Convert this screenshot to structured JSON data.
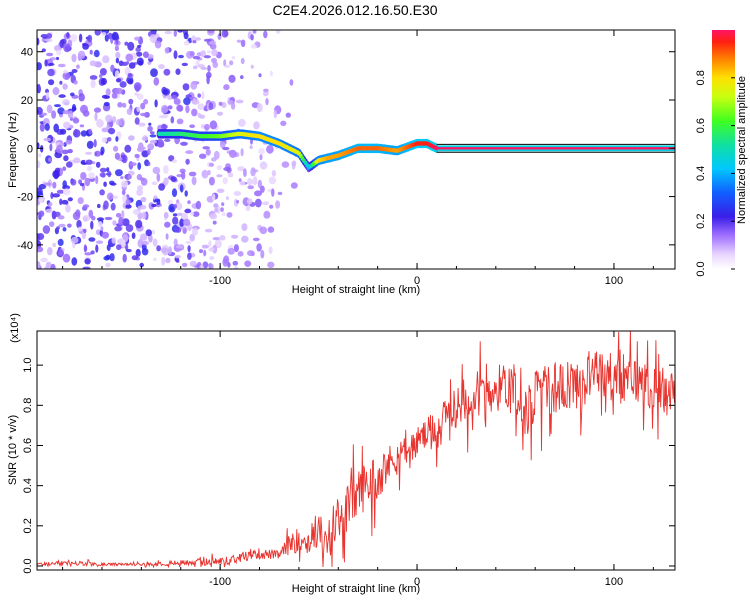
{
  "title": "C2E4.2026.012.16.50.E30",
  "colors": {
    "snr_line": "#e8332e",
    "scatter": "#6a1fe0",
    "axis": "#000000"
  },
  "chart_data": [
    {
      "type": "heatmap",
      "name": "spectrogram",
      "xlabel": "Height of straight line (km)",
      "ylabel": "Frequency (Hz)",
      "xlim": [
        -193,
        131
      ],
      "ylim": [
        -50,
        49
      ],
      "x_ticks": [
        -100,
        0,
        100
      ],
      "x_tick_labels": [
        "-100",
        "0",
        "100"
      ],
      "y_ticks": [
        -40,
        -20,
        0,
        20,
        40
      ],
      "y_tick_labels": [
        "-40",
        "-20",
        "0",
        "20",
        "40"
      ],
      "colorbar": {
        "label": "Normalized spectral amplitude",
        "range": [
          0,
          1
        ],
        "ticks": [
          0.0,
          0.2,
          0.4,
          0.6,
          0.8
        ],
        "tick_labels": [
          "0.0",
          "0.2",
          "0.4",
          "0.6",
          "0.8"
        ]
      },
      "ridge": {
        "x": [
          -130,
          -120,
          -110,
          -100,
          -90,
          -80,
          -70,
          -60,
          -55,
          -50,
          -45,
          -40,
          -30,
          -20,
          -10,
          0,
          5,
          10,
          130
        ],
        "y": [
          6,
          6,
          5,
          5,
          6,
          5,
          2,
          -2,
          -8,
          -5,
          -4,
          -3,
          0,
          0,
          -1,
          2,
          2,
          0,
          0
        ],
        "amplitude": [
          0.5,
          0.55,
          0.6,
          0.65,
          0.75,
          0.8,
          0.8,
          0.75,
          0.4,
          0.8,
          0.85,
          0.85,
          0.9,
          0.9,
          0.85,
          0.95,
          0.95,
          1.0,
          1.0
        ]
      },
      "noise_region_x": [
        -193,
        -95
      ]
    },
    {
      "type": "line",
      "name": "snr",
      "xlabel": "Height of straight line (km)",
      "ylabel": "SNR (10 * v/v)",
      "y_scale_label": "(x10⁴)",
      "xlim": [
        -193,
        131
      ],
      "ylim": [
        -0.02,
        1.17
      ],
      "x_ticks": [
        -100,
        0,
        100
      ],
      "x_tick_labels": [
        "-100",
        "0",
        "100"
      ],
      "y_ticks": [
        0.0,
        0.2,
        0.4,
        0.6,
        0.8,
        1.0
      ],
      "y_tick_labels": [
        "0.0",
        "0.2",
        "0.4",
        "0.6",
        "0.8",
        "1.0"
      ],
      "series": [
        {
          "name": "SNR",
          "x": [
            -193,
            -180,
            -160,
            -140,
            -120,
            -100,
            -90,
            -80,
            -70,
            -65,
            -60,
            -55,
            -50,
            -45,
            -40,
            -35,
            -30,
            -25,
            -20,
            -15,
            -10,
            -5,
            0,
            10,
            20,
            30,
            40,
            50,
            55,
            60,
            70,
            80,
            90,
            100,
            110,
            120,
            131
          ],
          "y": [
            0.01,
            0.02,
            0.01,
            0.01,
            0.02,
            0.03,
            0.05,
            0.07,
            0.06,
            0.12,
            0.15,
            0.14,
            0.22,
            0.1,
            0.28,
            0.33,
            0.4,
            0.45,
            0.48,
            0.53,
            0.57,
            0.6,
            0.64,
            0.72,
            0.82,
            0.9,
            0.92,
            0.95,
            0.78,
            0.9,
            0.92,
            0.94,
            1.0,
            0.98,
            0.96,
            0.93,
            0.9
          ],
          "spread": [
            0.01,
            0.02,
            0.01,
            0.01,
            0.02,
            0.03,
            0.03,
            0.04,
            0.03,
            0.07,
            0.09,
            0.1,
            0.14,
            0.1,
            0.15,
            0.17,
            0.18,
            0.17,
            0.16,
            0.14,
            0.13,
            0.12,
            0.11,
            0.12,
            0.14,
            0.16,
            0.17,
            0.18,
            0.2,
            0.18,
            0.18,
            0.18,
            0.18,
            0.18,
            0.17,
            0.17,
            0.16
          ]
        }
      ]
    }
  ]
}
